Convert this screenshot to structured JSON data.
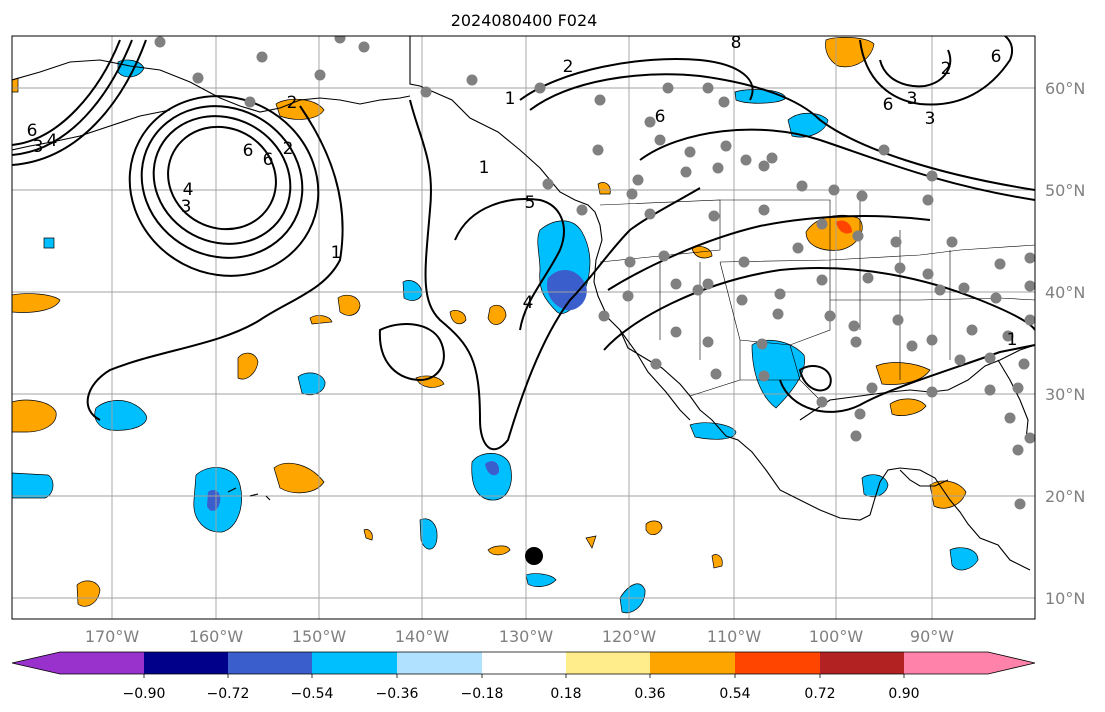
{
  "title": "2024080400 F024",
  "lat_labels": [
    "60°N",
    "50°N",
    "40°N",
    "30°N",
    "20°N",
    "10°N"
  ],
  "lon_labels": [
    "170°W",
    "160°W",
    "150°W",
    "140°W",
    "130°W",
    "120°W",
    "110°W",
    "100°W",
    "90°W"
  ],
  "colorbar": {
    "tick_labels": [
      "−0.90",
      "−0.72",
      "−0.54",
      "−0.36",
      "−0.18",
      "0.18",
      "0.36",
      "0.54",
      "0.72",
      "0.90"
    ],
    "colors": [
      "#9932CC",
      "#00008B",
      "#3A5FCD",
      "#00BFFF",
      "#B0E2FF",
      "#FFFFFF",
      "#FFEC8B",
      "#FFA500",
      "#FF4500",
      "#B22222",
      "#FF82AB"
    ]
  },
  "contour_labels": [
    "6",
    "4",
    "3",
    "2",
    "6",
    "6",
    "4",
    "3",
    "2",
    "1",
    "1",
    "5",
    "4",
    "1",
    "2",
    "6",
    "8",
    "6",
    "3",
    "3",
    "2",
    "6",
    "1"
  ],
  "colors": {
    "blue_fill": "#00BFFF",
    "dark_blue_fill": "#3A5FCD",
    "orange_fill": "#FFA500",
    "red_fill": "#FF4500",
    "station_dot": "#808080"
  }
}
